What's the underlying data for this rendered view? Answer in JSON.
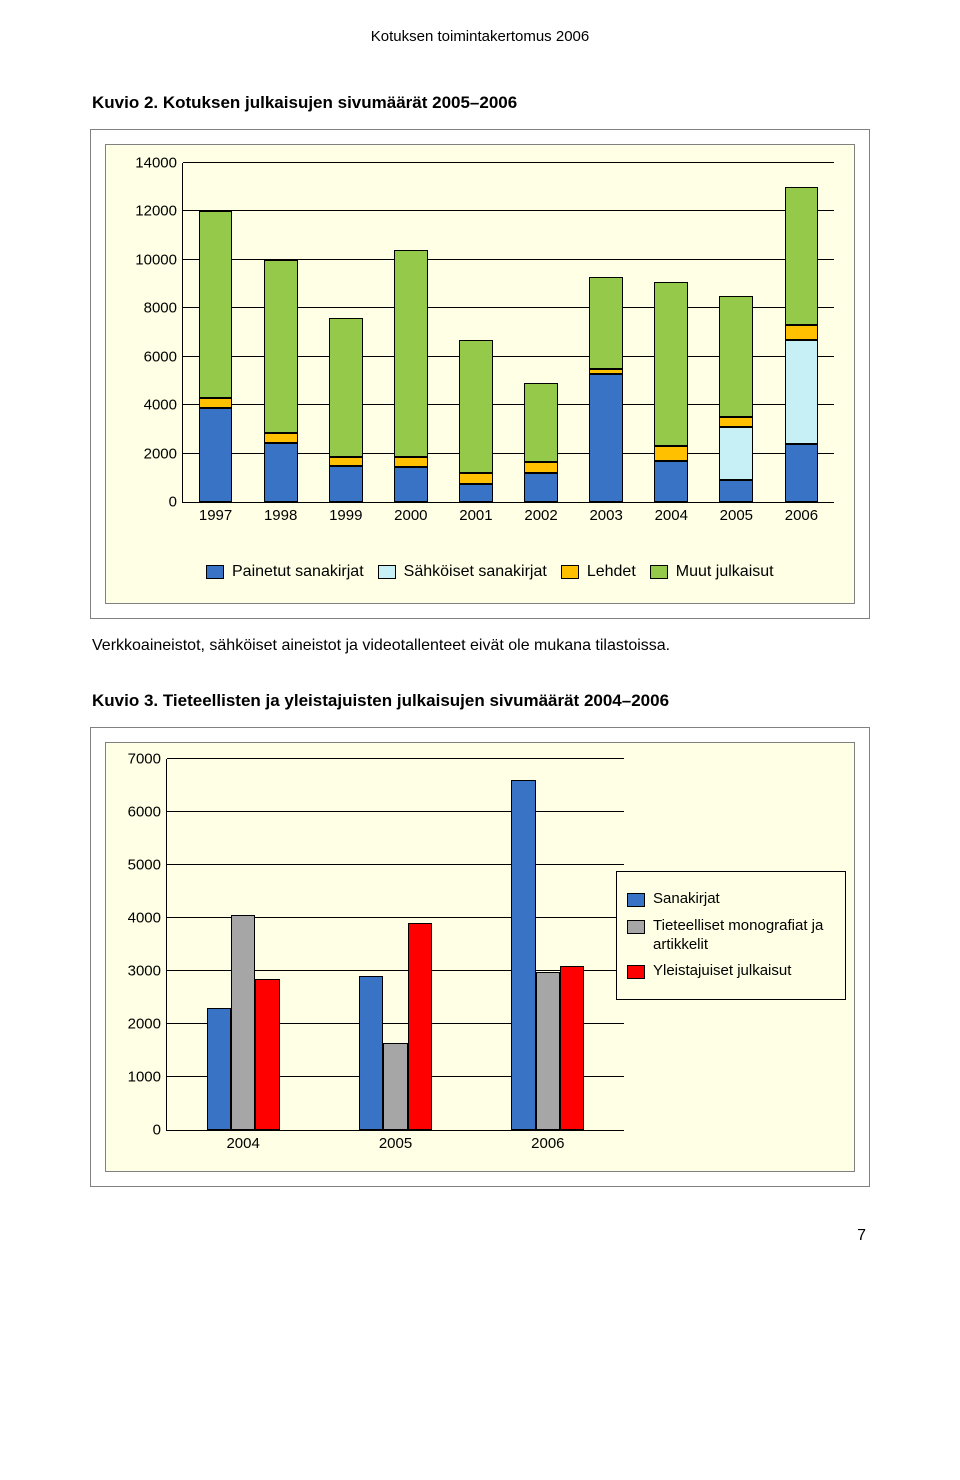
{
  "header": "Kotuksen toimintakertomus 2006",
  "page_number": "7",
  "fig2_title": "Kuvio 2. Kotuksen julkaisujen sivumäärät 2005–2006",
  "fig3_title": "Kuvio 3. Tieteellisten ja yleistajuisten julkaisujen sivumäärät 2004–2006",
  "note": "Verkkoaineistot, sähköiset aineistot ja videotallenteet eivät ole mukana tilastoissa.",
  "chart1": {
    "type": "stacked-bar",
    "background": "#ffffe5",
    "grid_color": "#000000",
    "ymax": 14000,
    "ystep": 2000,
    "yticks": [
      "0",
      "2000",
      "4000",
      "6000",
      "8000",
      "10000",
      "12000",
      "14000"
    ],
    "categories": [
      "1997",
      "1998",
      "1999",
      "2000",
      "2001",
      "2002",
      "2003",
      "2004",
      "2005",
      "2006"
    ],
    "series": [
      {
        "key": "painetut",
        "label": "Painetut sanakirjat",
        "color": "#3973c6"
      },
      {
        "key": "sahkoiset",
        "label": "Sähköiset sanakirjat",
        "color": "#c6f0f5"
      },
      {
        "key": "lehdet",
        "label": "Lehdet",
        "color": "#ffc000"
      },
      {
        "key": "muut",
        "label": "Muut julkaisut",
        "color": "#94c94a"
      }
    ],
    "data": {
      "painetut": [
        3900,
        2450,
        1500,
        1450,
        750,
        1200,
        5300,
        1700,
        900,
        2400
      ],
      "sahkoiset": [
        0,
        0,
        0,
        0,
        0,
        0,
        0,
        0,
        2200,
        4300
      ],
      "lehdet": [
        400,
        400,
        350,
        400,
        450,
        450,
        200,
        600,
        400,
        600
      ],
      "muut": [
        7700,
        7150,
        5750,
        8550,
        5500,
        3250,
        3800,
        6800,
        5000,
        5700
      ]
    }
  },
  "chart2": {
    "type": "grouped-bar",
    "background": "#ffffe5",
    "grid_color": "#000000",
    "ymax": 7000,
    "ystep": 1000,
    "yticks": [
      "0",
      "1000",
      "2000",
      "3000",
      "4000",
      "5000",
      "6000",
      "7000"
    ],
    "categories": [
      "2004",
      "2005",
      "2006"
    ],
    "series": [
      {
        "key": "sana",
        "label": "Sanakirjat",
        "color": "#3973c6"
      },
      {
        "key": "mono",
        "label": "Tieteelliset monografiat ja artikkelit",
        "color": "#a6a6a6"
      },
      {
        "key": "yleis",
        "label": "Yleistajuiset julkaisut",
        "color": "#ff0000"
      }
    ],
    "data": {
      "sana": [
        2300,
        2900,
        6600
      ],
      "mono": [
        4050,
        1650,
        2980
      ],
      "yleis": [
        2850,
        3900,
        3100
      ]
    }
  }
}
